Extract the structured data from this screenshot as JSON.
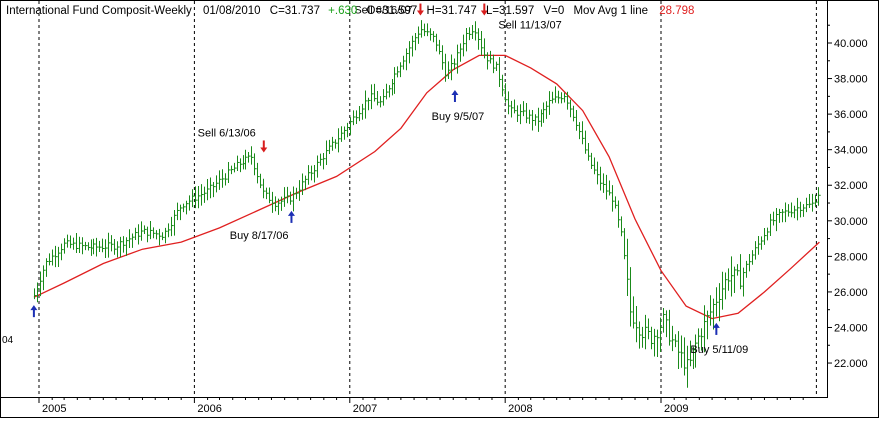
{
  "header": {
    "title": "International Fund Composit-Weekly",
    "date": "01/08/2010",
    "close": "C=31.737",
    "change": "+.630",
    "open": "O=31.597",
    "high": "H=31.747",
    "low": "L=31.597",
    "volume": "V=0",
    "ma_label": "Mov Avg 1 line",
    "ma_value": "28.798"
  },
  "colors": {
    "price_bars": "#1a8a1a",
    "moving_average": "#e02020",
    "change_positive": "#1aa01a",
    "ma_value": "#e02020",
    "sell_arrow": "#d81e1e",
    "buy_arrow": "#1c2fb4",
    "grid": "#000000",
    "background": "#ffffff"
  },
  "chart_data": {
    "type": "line",
    "title": "International Fund Composit-Weekly",
    "ylim": [
      20.6,
      42.4
    ],
    "yticks": [
      22,
      24,
      26,
      28,
      30,
      32,
      34,
      36,
      38,
      40
    ],
    "y_tick_labels": [
      "22.000",
      "24.000",
      "26.000",
      "28.000",
      "30.000",
      "32.000",
      "34.000",
      "36.000",
      "38.000",
      "40.000"
    ],
    "x_labels": [
      "2005",
      "2006",
      "2007",
      "2008",
      "2009"
    ],
    "truncated_left_label": "04",
    "grid": "vertical dotted at year boundaries",
    "series": [
      {
        "name": "Price",
        "style": "weekly high-low bars",
        "values": [
          {
            "date": "2004-12-20",
            "v": 25.8
          },
          {
            "date": "2005-01-15",
            "v": 27.6
          },
          {
            "date": "2005-03-01",
            "v": 28.7
          },
          {
            "date": "2005-05-01",
            "v": 28.5
          },
          {
            "date": "2005-07-01",
            "v": 28.6
          },
          {
            "date": "2005-09-01",
            "v": 29.4
          },
          {
            "date": "2005-10-20",
            "v": 29.2
          },
          {
            "date": "2005-12-01",
            "v": 30.9
          },
          {
            "date": "2006-02-01",
            "v": 31.7
          },
          {
            "date": "2006-04-15",
            "v": 33.2
          },
          {
            "date": "2006-05-15",
            "v": 33.6
          },
          {
            "date": "2006-06-13",
            "v": 31.5
          },
          {
            "date": "2006-07-10",
            "v": 31.0
          },
          {
            "date": "2006-08-17",
            "v": 31.3
          },
          {
            "date": "2006-09-15",
            "v": 32.2
          },
          {
            "date": "2006-11-01",
            "v": 33.7
          },
          {
            "date": "2006-12-15",
            "v": 35.0
          },
          {
            "date": "2007-02-15",
            "v": 37.0
          },
          {
            "date": "2007-03-15",
            "v": 36.6
          },
          {
            "date": "2007-04-15",
            "v": 38.2
          },
          {
            "date": "2007-05-20",
            "v": 39.7
          },
          {
            "date": "2007-06-16",
            "v": 40.8
          },
          {
            "date": "2007-07-20",
            "v": 40.2
          },
          {
            "date": "2007-08-15",
            "v": 38.2
          },
          {
            "date": "2007-09-05",
            "v": 39.0
          },
          {
            "date": "2007-10-01",
            "v": 40.5
          },
          {
            "date": "2007-10-20",
            "v": 40.9
          },
          {
            "date": "2007-11-13",
            "v": 39.3
          },
          {
            "date": "2007-12-10",
            "v": 38.6
          },
          {
            "date": "2008-01-10",
            "v": 36.2
          },
          {
            "date": "2008-02-10",
            "v": 36.0
          },
          {
            "date": "2008-03-15",
            "v": 35.6
          },
          {
            "date": "2008-04-15",
            "v": 36.7
          },
          {
            "date": "2008-05-20",
            "v": 37.1
          },
          {
            "date": "2008-06-15",
            "v": 35.6
          },
          {
            "date": "2008-07-15",
            "v": 33.4
          },
          {
            "date": "2008-08-10",
            "v": 32.2
          },
          {
            "date": "2008-09-10",
            "v": 31.2
          },
          {
            "date": "2008-10-01",
            "v": 29.0
          },
          {
            "date": "2008-10-20",
            "v": 24.9
          },
          {
            "date": "2008-11-15",
            "v": 23.8
          },
          {
            "date": "2008-12-10",
            "v": 23.4
          },
          {
            "date": "2009-01-05",
            "v": 24.4
          },
          {
            "date": "2009-02-01",
            "v": 22.9
          },
          {
            "date": "2009-03-05",
            "v": 21.7
          },
          {
            "date": "2009-03-25",
            "v": 23.2
          },
          {
            "date": "2009-04-20",
            "v": 24.5
          },
          {
            "date": "2009-05-11",
            "v": 25.6
          },
          {
            "date": "2009-06-10",
            "v": 27.0
          },
          {
            "date": "2009-07-05",
            "v": 26.7
          },
          {
            "date": "2009-07-25",
            "v": 27.7
          },
          {
            "date": "2009-08-20",
            "v": 28.8
          },
          {
            "date": "2009-09-15",
            "v": 29.9
          },
          {
            "date": "2009-10-10",
            "v": 30.4
          },
          {
            "date": "2009-11-01",
            "v": 30.6
          },
          {
            "date": "2009-11-25",
            "v": 30.8
          },
          {
            "date": "2009-12-20",
            "v": 30.9
          },
          {
            "date": "2010-01-08",
            "v": 31.7
          }
        ]
      },
      {
        "name": "Mov Avg 1 line",
        "values": [
          {
            "date": "2004-12-20",
            "v": 25.7
          },
          {
            "date": "2005-03-01",
            "v": 26.5
          },
          {
            "date": "2005-06-01",
            "v": 27.6
          },
          {
            "date": "2005-09-01",
            "v": 28.4
          },
          {
            "date": "2005-12-01",
            "v": 28.8
          },
          {
            "date": "2006-03-01",
            "v": 29.6
          },
          {
            "date": "2006-06-01",
            "v": 30.6
          },
          {
            "date": "2006-09-01",
            "v": 31.6
          },
          {
            "date": "2006-12-01",
            "v": 32.5
          },
          {
            "date": "2007-03-01",
            "v": 33.9
          },
          {
            "date": "2007-05-01",
            "v": 35.2
          },
          {
            "date": "2007-07-01",
            "v": 37.2
          },
          {
            "date": "2007-09-01",
            "v": 38.5
          },
          {
            "date": "2007-11-01",
            "v": 39.3
          },
          {
            "date": "2008-01-01",
            "v": 39.3
          },
          {
            "date": "2008-03-01",
            "v": 38.6
          },
          {
            "date": "2008-05-01",
            "v": 37.7
          },
          {
            "date": "2008-07-01",
            "v": 36.2
          },
          {
            "date": "2008-09-01",
            "v": 33.6
          },
          {
            "date": "2008-11-01",
            "v": 30.1
          },
          {
            "date": "2009-01-01",
            "v": 27.2
          },
          {
            "date": "2009-03-01",
            "v": 25.2
          },
          {
            "date": "2009-05-01",
            "v": 24.5
          },
          {
            "date": "2009-07-01",
            "v": 24.8
          },
          {
            "date": "2009-09-01",
            "v": 26.0
          },
          {
            "date": "2009-11-01",
            "v": 27.3
          },
          {
            "date": "2010-01-08",
            "v": 28.8
          }
        ]
      }
    ],
    "annotations": [
      {
        "label": "Sell 6/13/06",
        "kind": "sell",
        "date": "2006-06-13",
        "price": 33.9,
        "label_side": "left-above"
      },
      {
        "label": "Buy 8/17/06",
        "kind": "buy",
        "date": "2006-08-17",
        "price": 30.5,
        "label_side": "left-below"
      },
      {
        "label": "Sell 6/16/07",
        "kind": "sell",
        "date": "2007-06-16",
        "price": 41.6,
        "label_side": "left"
      },
      {
        "label": "Buy 9/5/07",
        "kind": "buy",
        "date": "2007-09-05",
        "price": 37.3,
        "label_side": "below"
      },
      {
        "label": "Sell 11/13/07",
        "kind": "sell",
        "date": "2007-11-13",
        "price": 41.6,
        "label_side": "right-below"
      },
      {
        "label": "Buy 5/11/09",
        "kind": "buy",
        "date": "2009-05-11",
        "price": 24.2,
        "label_side": "below"
      },
      {
        "label": "",
        "kind": "buy",
        "date": "2004-12-20",
        "price": 25.2,
        "label_side": "none"
      }
    ]
  }
}
